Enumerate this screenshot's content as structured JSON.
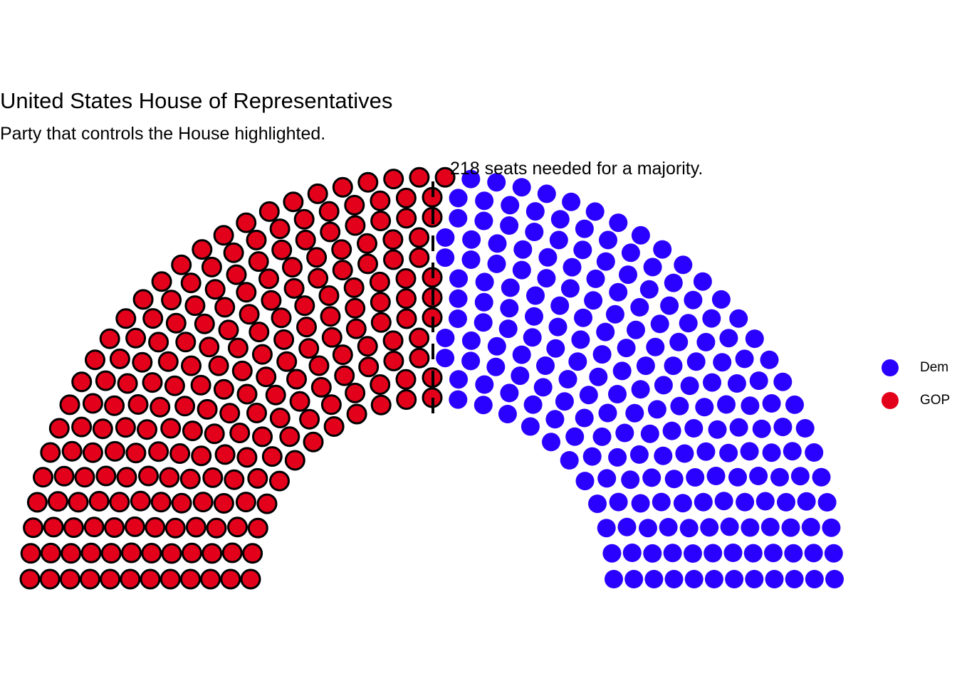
{
  "chart_data": {
    "type": "parliament",
    "title": "United States House of Representatives",
    "subtitle": "Party that controls the House highlighted.",
    "annotation": "218 seats needed for a majority.",
    "majority_threshold": 218,
    "total_seats": 435,
    "rows": 12,
    "highlighted_party": "GOP",
    "series": [
      {
        "name": "GOP",
        "seats": 222,
        "color": "#E3001B"
      },
      {
        "name": "Dem",
        "seats": 213,
        "color": "#2A00FF"
      }
    ],
    "legend": {
      "placement": "right",
      "order": [
        "Dem",
        "GOP"
      ]
    }
  }
}
